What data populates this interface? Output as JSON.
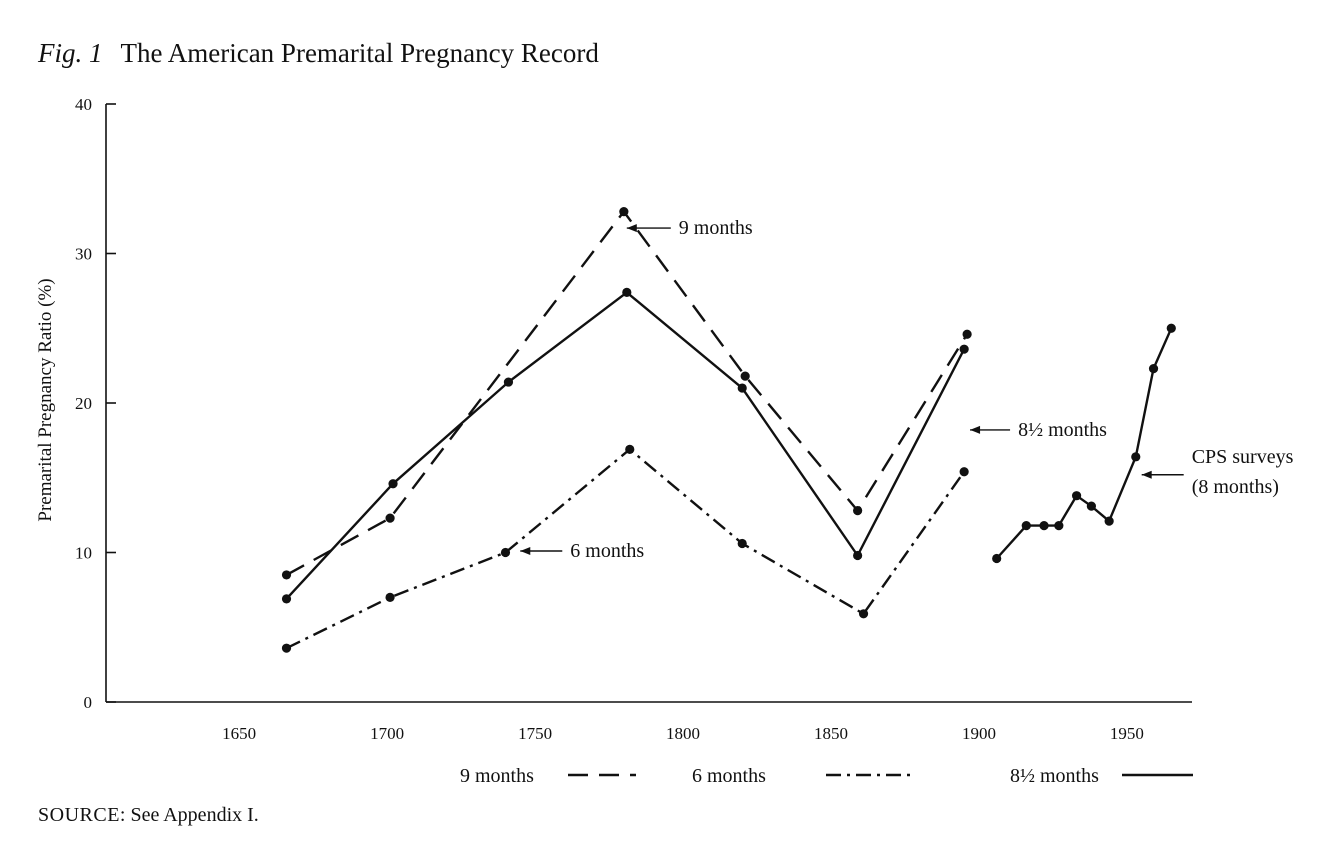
{
  "figure": {
    "fig_label": "Fig. 1",
    "title": "The American Premarital Pregnancy Record"
  },
  "source": {
    "label": "SOURCE",
    "separator": ": ",
    "text": "See Appendix I."
  },
  "chart_data": {
    "type": "line",
    "title": "The American Premarital Pregnancy Record",
    "xlabel": "",
    "ylabel": "Premarital Pregnancy Ratio (%)",
    "xlim": [
      1605,
      1972
    ],
    "ylim": [
      0,
      40
    ],
    "xticks": [
      1650,
      1700,
      1750,
      1800,
      1850,
      1900,
      1950
    ],
    "yticks": [
      0,
      10,
      20,
      30,
      40
    ],
    "grid": false,
    "legend_position": "bottom",
    "series": [
      {
        "name": "9 months",
        "style": "dashed",
        "color": "#111111",
        "points": [
          [
            1666,
            8.5
          ],
          [
            1701,
            12.3
          ],
          [
            1780,
            32.8
          ],
          [
            1821,
            21.8
          ],
          [
            1859,
            12.8
          ],
          [
            1896,
            24.6
          ]
        ]
      },
      {
        "name": "6 months",
        "style": "dash-dot",
        "color": "#111111",
        "points": [
          [
            1666,
            3.6
          ],
          [
            1701,
            7.0
          ],
          [
            1740,
            10.0
          ],
          [
            1782,
            16.9
          ],
          [
            1820,
            10.6
          ],
          [
            1861,
            5.9
          ],
          [
            1895,
            15.4
          ]
        ]
      },
      {
        "name": "8½ months",
        "style": "solid",
        "color": "#111111",
        "points": [
          [
            1666,
            6.9
          ],
          [
            1702,
            14.6
          ],
          [
            1741,
            21.4
          ],
          [
            1781,
            27.4
          ],
          [
            1820,
            21.0
          ],
          [
            1859,
            9.8
          ],
          [
            1895,
            23.6
          ]
        ]
      },
      {
        "name": "CPS surveys (8 months)",
        "style": "solid",
        "color": "#111111",
        "points": [
          [
            1906,
            9.6
          ],
          [
            1916,
            11.8
          ],
          [
            1922,
            11.8
          ],
          [
            1927,
            11.8
          ],
          [
            1933,
            13.8
          ],
          [
            1938,
            13.1
          ],
          [
            1944,
            12.1
          ],
          [
            1953,
            16.4
          ],
          [
            1959,
            22.3
          ],
          [
            1965,
            25.0
          ]
        ]
      }
    ],
    "annotations": [
      {
        "text": "9 months",
        "x": 1781,
        "y": 31.7
      },
      {
        "text": "8½ months",
        "x": 1897,
        "y": 18.2
      },
      {
        "text": "6 months",
        "x": 1745,
        "y": 10.1
      },
      {
        "text": "CPS surveys",
        "x": 1955,
        "y": 15.2
      },
      {
        "text": "(8 months)",
        "x": 1955,
        "y": 15.2
      }
    ],
    "legend": [
      {
        "label": "9 months",
        "style": "dashed"
      },
      {
        "label": "6 months",
        "style": "dash-dot"
      },
      {
        "label": "8½ months",
        "style": "solid"
      }
    ]
  }
}
